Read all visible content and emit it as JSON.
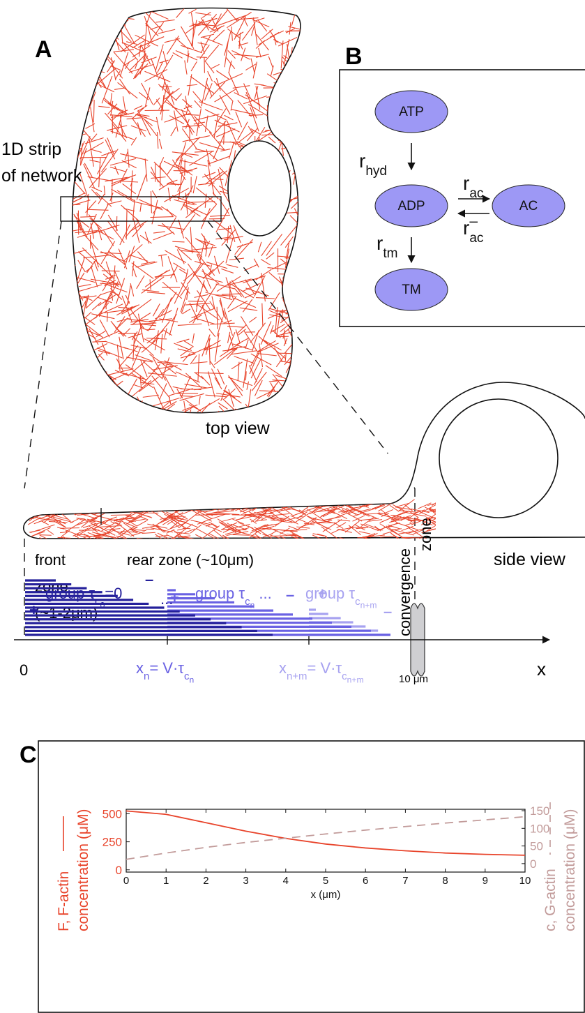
{
  "panel_labels": [
    "A",
    "B",
    "C"
  ],
  "panel_a": {
    "strip_label": [
      "1D strip",
      "of network"
    ],
    "top_view": "top view",
    "side_view": "side view",
    "front_zone": [
      "front",
      "zone",
      "(~1-2μm)"
    ],
    "rear_zone": "rear zone (~10μm)",
    "convergence_zone": [
      "convergence",
      "zone"
    ],
    "groups": [
      {
        "runs": [
          {
            "base": "group τ"
          },
          {
            "sub": "c"
          },
          {
            "subsub": "0"
          },
          {
            "base": "=0"
          }
        ],
        "plus": "+",
        "minus": "–"
      },
      {
        "runs": [
          {
            "base": "group τ"
          },
          {
            "sub": "c"
          },
          {
            "subsub": "n"
          },
          {
            "base": " ..."
          }
        ],
        "plus": "+",
        "minus": "–"
      },
      {
        "runs": [
          {
            "base": "group τ"
          },
          {
            "sub": "c"
          },
          {
            "subsub": "n+m"
          }
        ],
        "plus": "+",
        "minus": "–"
      }
    ],
    "ellipsis": "...",
    "origin": "0",
    "axis_label": "x",
    "scale": "10 μm",
    "positions": [
      {
        "runs": [
          {
            "base": "x"
          },
          {
            "sub": "n"
          },
          {
            "base": "= V·τ"
          },
          {
            "sub": "c"
          },
          {
            "subsub": "n"
          }
        ]
      },
      {
        "runs": [
          {
            "base": "x"
          },
          {
            "sub": "n+m"
          },
          {
            "base": "= V·τ"
          },
          {
            "sub": "c"
          },
          {
            "subsub": "n+m"
          }
        ]
      }
    ]
  },
  "panel_b": {
    "nodes": [
      "ATP",
      "ADP",
      "AC",
      "TM"
    ],
    "rates": [
      {
        "runs": [
          {
            "base": "r"
          },
          {
            "sub": "hyd"
          }
        ]
      },
      {
        "runs": [
          {
            "base": "r"
          },
          {
            "sub": "ac"
          }
        ]
      },
      {
        "runs": [
          {
            "base": "r"
          },
          {
            "sub": "ac"
          },
          {
            "sup": "–"
          }
        ]
      },
      {
        "runs": [
          {
            "base": "r"
          },
          {
            "sub": "tm"
          }
        ]
      }
    ]
  },
  "chart_data": {
    "type": "line",
    "x": [
      0,
      1,
      2,
      3,
      4,
      5,
      6,
      7,
      8,
      9,
      10
    ],
    "xlabel": "x (μm)",
    "ylabel": [
      "F, F-actin",
      "concentration (μM)"
    ],
    "y2label": [
      "c, G-actin",
      "concentration (μM)"
    ],
    "xlim": [
      0,
      10
    ],
    "xticks": [
      0,
      1,
      2,
      3,
      4,
      5,
      6,
      7,
      8,
      9,
      10
    ],
    "ylim": [
      -20,
      540
    ],
    "yticks": [
      0,
      250,
      500
    ],
    "y2lim": [
      -24,
      154
    ],
    "y2ticks": [
      0,
      50,
      100,
      150
    ],
    "series": [
      {
        "color": "#e8432a",
        "style": "solid",
        "values": [
          525,
          495,
          420,
          345,
          280,
          230,
          195,
          170,
          150,
          138,
          130
        ]
      },
      {
        "color": "#c29b9a",
        "style": "dashed",
        "axis": "y2",
        "values": [
          12,
          30,
          46,
          60,
          72,
          84,
          95,
          105,
          115,
          124,
          133
        ]
      }
    ]
  }
}
